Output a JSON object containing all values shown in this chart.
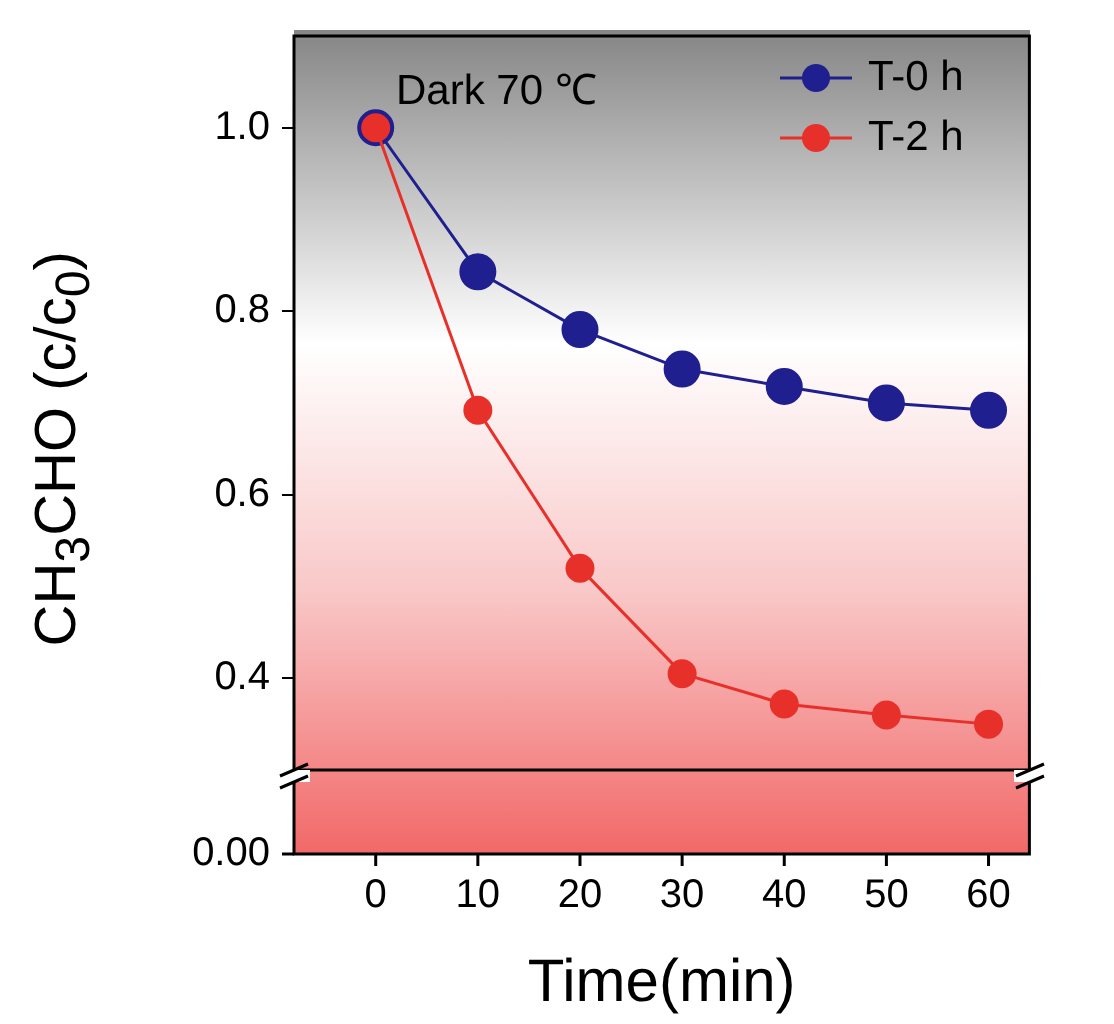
{
  "chart_data": {
    "type": "line",
    "xlabel": "Time(min)",
    "ylabel": "CH$_{3}$CHO (c/c$_{0}$)",
    "annotations": [
      "Dark  70 ℃",
      "0.00"
    ],
    "x": [
      0,
      10,
      20,
      30,
      40,
      50,
      60
    ],
    "xlim": [
      -8,
      64
    ],
    "xticks": [
      0,
      10,
      20,
      30,
      40,
      50,
      60
    ],
    "ylim": [
      0.3,
      1.1
    ],
    "yticks": [
      {
        "value": 0.4,
        "label": "0.4"
      },
      {
        "value": 0.6,
        "label": "0.6"
      },
      {
        "value": 0.8,
        "label": "0.8"
      },
      {
        "value": 1.0,
        "label": "1.0"
      }
    ],
    "legend": "top right",
    "marker": "circle",
    "line_style": "solid",
    "series": [
      {
        "name": "T-0 h",
        "color": "#1f1f8f",
        "values": [
          1.0,
          0.843,
          0.78,
          0.737,
          0.718,
          0.7,
          0.692
        ]
      },
      {
        "name": "T-2 h",
        "color": "#e8302a",
        "values": [
          1.0,
          0.692,
          0.52,
          0.405,
          0.372,
          0.36,
          0.35
        ]
      }
    ]
  }
}
